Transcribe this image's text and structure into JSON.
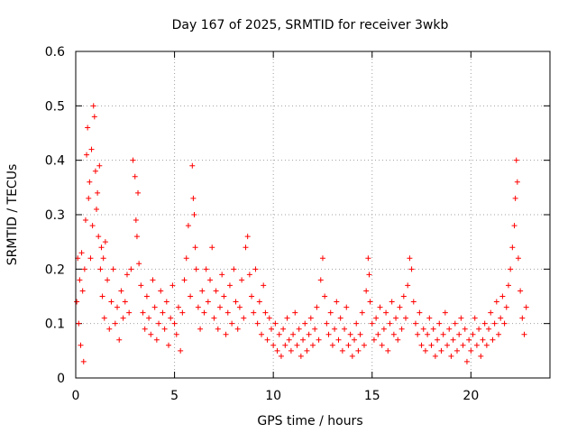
{
  "chart_data": {
    "type": "scatter",
    "title": "Day 167 of 2025, SRMTID for receiver 3wkb",
    "xlabel": "GPS time / hours",
    "ylabel": "SRMTID / TECUs",
    "xlim": [
      0,
      24
    ],
    "ylim": [
      0,
      0.6
    ],
    "xticks": [
      0,
      5,
      10,
      15,
      20
    ],
    "xtick_labels": [
      "0",
      "5",
      "10",
      "15",
      "20"
    ],
    "yticks": [
      0,
      0.1,
      0.2,
      0.3,
      0.4,
      0.5,
      0.6
    ],
    "ytick_labels": [
      "0",
      "0.1",
      "0.2",
      "0.3",
      "0.4",
      "0.5",
      "0.6"
    ],
    "grid": true,
    "marker": "+",
    "series": [
      {
        "name": "SRMTID",
        "color": "#ff0000",
        "points": [
          [
            0.05,
            0.14
          ],
          [
            0.1,
            0.22
          ],
          [
            0.15,
            0.1
          ],
          [
            0.2,
            0.18
          ],
          [
            0.25,
            0.06
          ],
          [
            0.3,
            0.23
          ],
          [
            0.35,
            0.16
          ],
          [
            0.4,
            0.03
          ],
          [
            0.45,
            0.2
          ],
          [
            0.5,
            0.29
          ],
          [
            0.55,
            0.41
          ],
          [
            0.6,
            0.46
          ],
          [
            0.65,
            0.33
          ],
          [
            0.7,
            0.36
          ],
          [
            0.75,
            0.22
          ],
          [
            0.8,
            0.42
          ],
          [
            0.85,
            0.28
          ],
          [
            0.9,
            0.5
          ],
          [
            0.95,
            0.48
          ],
          [
            1.0,
            0.38
          ],
          [
            1.05,
            0.31
          ],
          [
            1.1,
            0.34
          ],
          [
            1.15,
            0.26
          ],
          [
            1.2,
            0.39
          ],
          [
            1.25,
            0.2
          ],
          [
            1.3,
            0.24
          ],
          [
            1.35,
            0.15
          ],
          [
            1.4,
            0.22
          ],
          [
            1.45,
            0.11
          ],
          [
            1.5,
            0.25
          ],
          [
            1.6,
            0.18
          ],
          [
            1.7,
            0.09
          ],
          [
            1.8,
            0.14
          ],
          [
            1.9,
            0.2
          ],
          [
            2.0,
            0.1
          ],
          [
            2.1,
            0.13
          ],
          [
            2.2,
            0.07
          ],
          [
            2.3,
            0.16
          ],
          [
            2.4,
            0.11
          ],
          [
            2.5,
            0.14
          ],
          [
            2.6,
            0.19
          ],
          [
            2.7,
            0.12
          ],
          [
            2.8,
            0.2
          ],
          [
            2.9,
            0.4
          ],
          [
            3.0,
            0.37
          ],
          [
            3.05,
            0.29
          ],
          [
            3.1,
            0.26
          ],
          [
            3.15,
            0.34
          ],
          [
            3.2,
            0.21
          ],
          [
            3.3,
            0.17
          ],
          [
            3.4,
            0.12
          ],
          [
            3.5,
            0.09
          ],
          [
            3.6,
            0.15
          ],
          [
            3.7,
            0.11
          ],
          [
            3.8,
            0.08
          ],
          [
            3.9,
            0.18
          ],
          [
            4.0,
            0.13
          ],
          [
            4.1,
            0.07
          ],
          [
            4.2,
            0.1
          ],
          [
            4.3,
            0.16
          ],
          [
            4.4,
            0.12
          ],
          [
            4.5,
            0.09
          ],
          [
            4.6,
            0.14
          ],
          [
            4.7,
            0.06
          ],
          [
            4.8,
            0.11
          ],
          [
            4.9,
            0.17
          ],
          [
            5.0,
            0.1
          ],
          [
            5.1,
            0.08
          ],
          [
            5.2,
            0.13
          ],
          [
            5.3,
            0.05
          ],
          [
            5.4,
            0.12
          ],
          [
            5.5,
            0.18
          ],
          [
            5.6,
            0.22
          ],
          [
            5.7,
            0.28
          ],
          [
            5.8,
            0.15
          ],
          [
            5.9,
            0.39
          ],
          [
            5.95,
            0.33
          ],
          [
            6.0,
            0.3
          ],
          [
            6.05,
            0.24
          ],
          [
            6.1,
            0.2
          ],
          [
            6.2,
            0.13
          ],
          [
            6.3,
            0.09
          ],
          [
            6.4,
            0.16
          ],
          [
            6.5,
            0.12
          ],
          [
            6.6,
            0.2
          ],
          [
            6.7,
            0.14
          ],
          [
            6.8,
            0.18
          ],
          [
            6.9,
            0.24
          ],
          [
            7.0,
            0.11
          ],
          [
            7.1,
            0.16
          ],
          [
            7.2,
            0.09
          ],
          [
            7.3,
            0.13
          ],
          [
            7.4,
            0.19
          ],
          [
            7.5,
            0.15
          ],
          [
            7.6,
            0.08
          ],
          [
            7.7,
            0.12
          ],
          [
            7.8,
            0.17
          ],
          [
            7.9,
            0.1
          ],
          [
            8.0,
            0.2
          ],
          [
            8.1,
            0.14
          ],
          [
            8.2,
            0.09
          ],
          [
            8.3,
            0.13
          ],
          [
            8.4,
            0.18
          ],
          [
            8.5,
            0.11
          ],
          [
            8.6,
            0.24
          ],
          [
            8.7,
            0.26
          ],
          [
            8.8,
            0.19
          ],
          [
            8.9,
            0.15
          ],
          [
            9.0,
            0.12
          ],
          [
            9.1,
            0.2
          ],
          [
            9.2,
            0.1
          ],
          [
            9.3,
            0.14
          ],
          [
            9.4,
            0.08
          ],
          [
            9.5,
            0.17
          ],
          [
            9.6,
            0.12
          ],
          [
            9.7,
            0.07
          ],
          [
            9.8,
            0.11
          ],
          [
            9.9,
            0.09
          ],
          [
            10.0,
            0.06
          ],
          [
            10.1,
            0.1
          ],
          [
            10.2,
            0.05
          ],
          [
            10.3,
            0.08
          ],
          [
            10.4,
            0.04
          ],
          [
            10.5,
            0.09
          ],
          [
            10.6,
            0.06
          ],
          [
            10.7,
            0.11
          ],
          [
            10.8,
            0.07
          ],
          [
            10.9,
            0.05
          ],
          [
            11.0,
            0.08
          ],
          [
            11.1,
            0.12
          ],
          [
            11.2,
            0.06
          ],
          [
            11.3,
            0.09
          ],
          [
            11.4,
            0.04
          ],
          [
            11.5,
            0.07
          ],
          [
            11.6,
            0.1
          ],
          [
            11.7,
            0.05
          ],
          [
            11.8,
            0.08
          ],
          [
            11.9,
            0.11
          ],
          [
            12.0,
            0.06
          ],
          [
            12.1,
            0.09
          ],
          [
            12.2,
            0.13
          ],
          [
            12.3,
            0.07
          ],
          [
            12.4,
            0.18
          ],
          [
            12.5,
            0.22
          ],
          [
            12.6,
            0.15
          ],
          [
            12.7,
            0.1
          ],
          [
            12.8,
            0.08
          ],
          [
            12.9,
            0.12
          ],
          [
            13.0,
            0.06
          ],
          [
            13.1,
            0.09
          ],
          [
            13.2,
            0.14
          ],
          [
            13.3,
            0.07
          ],
          [
            13.4,
            0.11
          ],
          [
            13.5,
            0.05
          ],
          [
            13.6,
            0.09
          ],
          [
            13.7,
            0.13
          ],
          [
            13.8,
            0.06
          ],
          [
            13.9,
            0.08
          ],
          [
            14.0,
            0.04
          ],
          [
            14.1,
            0.07
          ],
          [
            14.2,
            0.1
          ],
          [
            14.3,
            0.05
          ],
          [
            14.4,
            0.08
          ],
          [
            14.5,
            0.12
          ],
          [
            14.6,
            0.06
          ],
          [
            14.7,
            0.16
          ],
          [
            14.8,
            0.22
          ],
          [
            14.85,
            0.19
          ],
          [
            14.9,
            0.14
          ],
          [
            15.0,
            0.1
          ],
          [
            15.1,
            0.07
          ],
          [
            15.2,
            0.11
          ],
          [
            15.3,
            0.08
          ],
          [
            15.4,
            0.13
          ],
          [
            15.5,
            0.06
          ],
          [
            15.6,
            0.09
          ],
          [
            15.7,
            0.12
          ],
          [
            15.8,
            0.05
          ],
          [
            15.9,
            0.1
          ],
          [
            16.0,
            0.14
          ],
          [
            16.1,
            0.08
          ],
          [
            16.2,
            0.11
          ],
          [
            16.3,
            0.07
          ],
          [
            16.4,
            0.13
          ],
          [
            16.5,
            0.09
          ],
          [
            16.6,
            0.15
          ],
          [
            16.7,
            0.11
          ],
          [
            16.8,
            0.17
          ],
          [
            16.9,
            0.22
          ],
          [
            17.0,
            0.2
          ],
          [
            17.1,
            0.14
          ],
          [
            17.2,
            0.1
          ],
          [
            17.3,
            0.08
          ],
          [
            17.4,
            0.12
          ],
          [
            17.5,
            0.06
          ],
          [
            17.6,
            0.09
          ],
          [
            17.7,
            0.05
          ],
          [
            17.8,
            0.08
          ],
          [
            17.9,
            0.11
          ],
          [
            18.0,
            0.06
          ],
          [
            18.1,
            0.09
          ],
          [
            18.2,
            0.04
          ],
          [
            18.3,
            0.07
          ],
          [
            18.4,
            0.1
          ],
          [
            18.5,
            0.05
          ],
          [
            18.6,
            0.08
          ],
          [
            18.7,
            0.12
          ],
          [
            18.8,
            0.06
          ],
          [
            18.9,
            0.09
          ],
          [
            19.0,
            0.04
          ],
          [
            19.1,
            0.07
          ],
          [
            19.2,
            0.1
          ],
          [
            19.3,
            0.05
          ],
          [
            19.4,
            0.08
          ],
          [
            19.5,
            0.11
          ],
          [
            19.6,
            0.06
          ],
          [
            19.7,
            0.09
          ],
          [
            19.8,
            0.03
          ],
          [
            19.9,
            0.07
          ],
          [
            20.0,
            0.05
          ],
          [
            20.1,
            0.08
          ],
          [
            20.2,
            0.11
          ],
          [
            20.3,
            0.06
          ],
          [
            20.4,
            0.09
          ],
          [
            20.5,
            0.04
          ],
          [
            20.6,
            0.07
          ],
          [
            20.7,
            0.1
          ],
          [
            20.8,
            0.06
          ],
          [
            20.9,
            0.09
          ],
          [
            21.0,
            0.12
          ],
          [
            21.1,
            0.07
          ],
          [
            21.2,
            0.1
          ],
          [
            21.3,
            0.14
          ],
          [
            21.4,
            0.08
          ],
          [
            21.5,
            0.11
          ],
          [
            21.6,
            0.15
          ],
          [
            21.7,
            0.1
          ],
          [
            21.8,
            0.13
          ],
          [
            21.9,
            0.17
          ],
          [
            22.0,
            0.2
          ],
          [
            22.1,
            0.24
          ],
          [
            22.2,
            0.28
          ],
          [
            22.25,
            0.33
          ],
          [
            22.3,
            0.4
          ],
          [
            22.35,
            0.36
          ],
          [
            22.4,
            0.22
          ],
          [
            22.5,
            0.16
          ],
          [
            22.6,
            0.11
          ],
          [
            22.7,
            0.08
          ],
          [
            22.8,
            0.13
          ]
        ]
      }
    ]
  }
}
